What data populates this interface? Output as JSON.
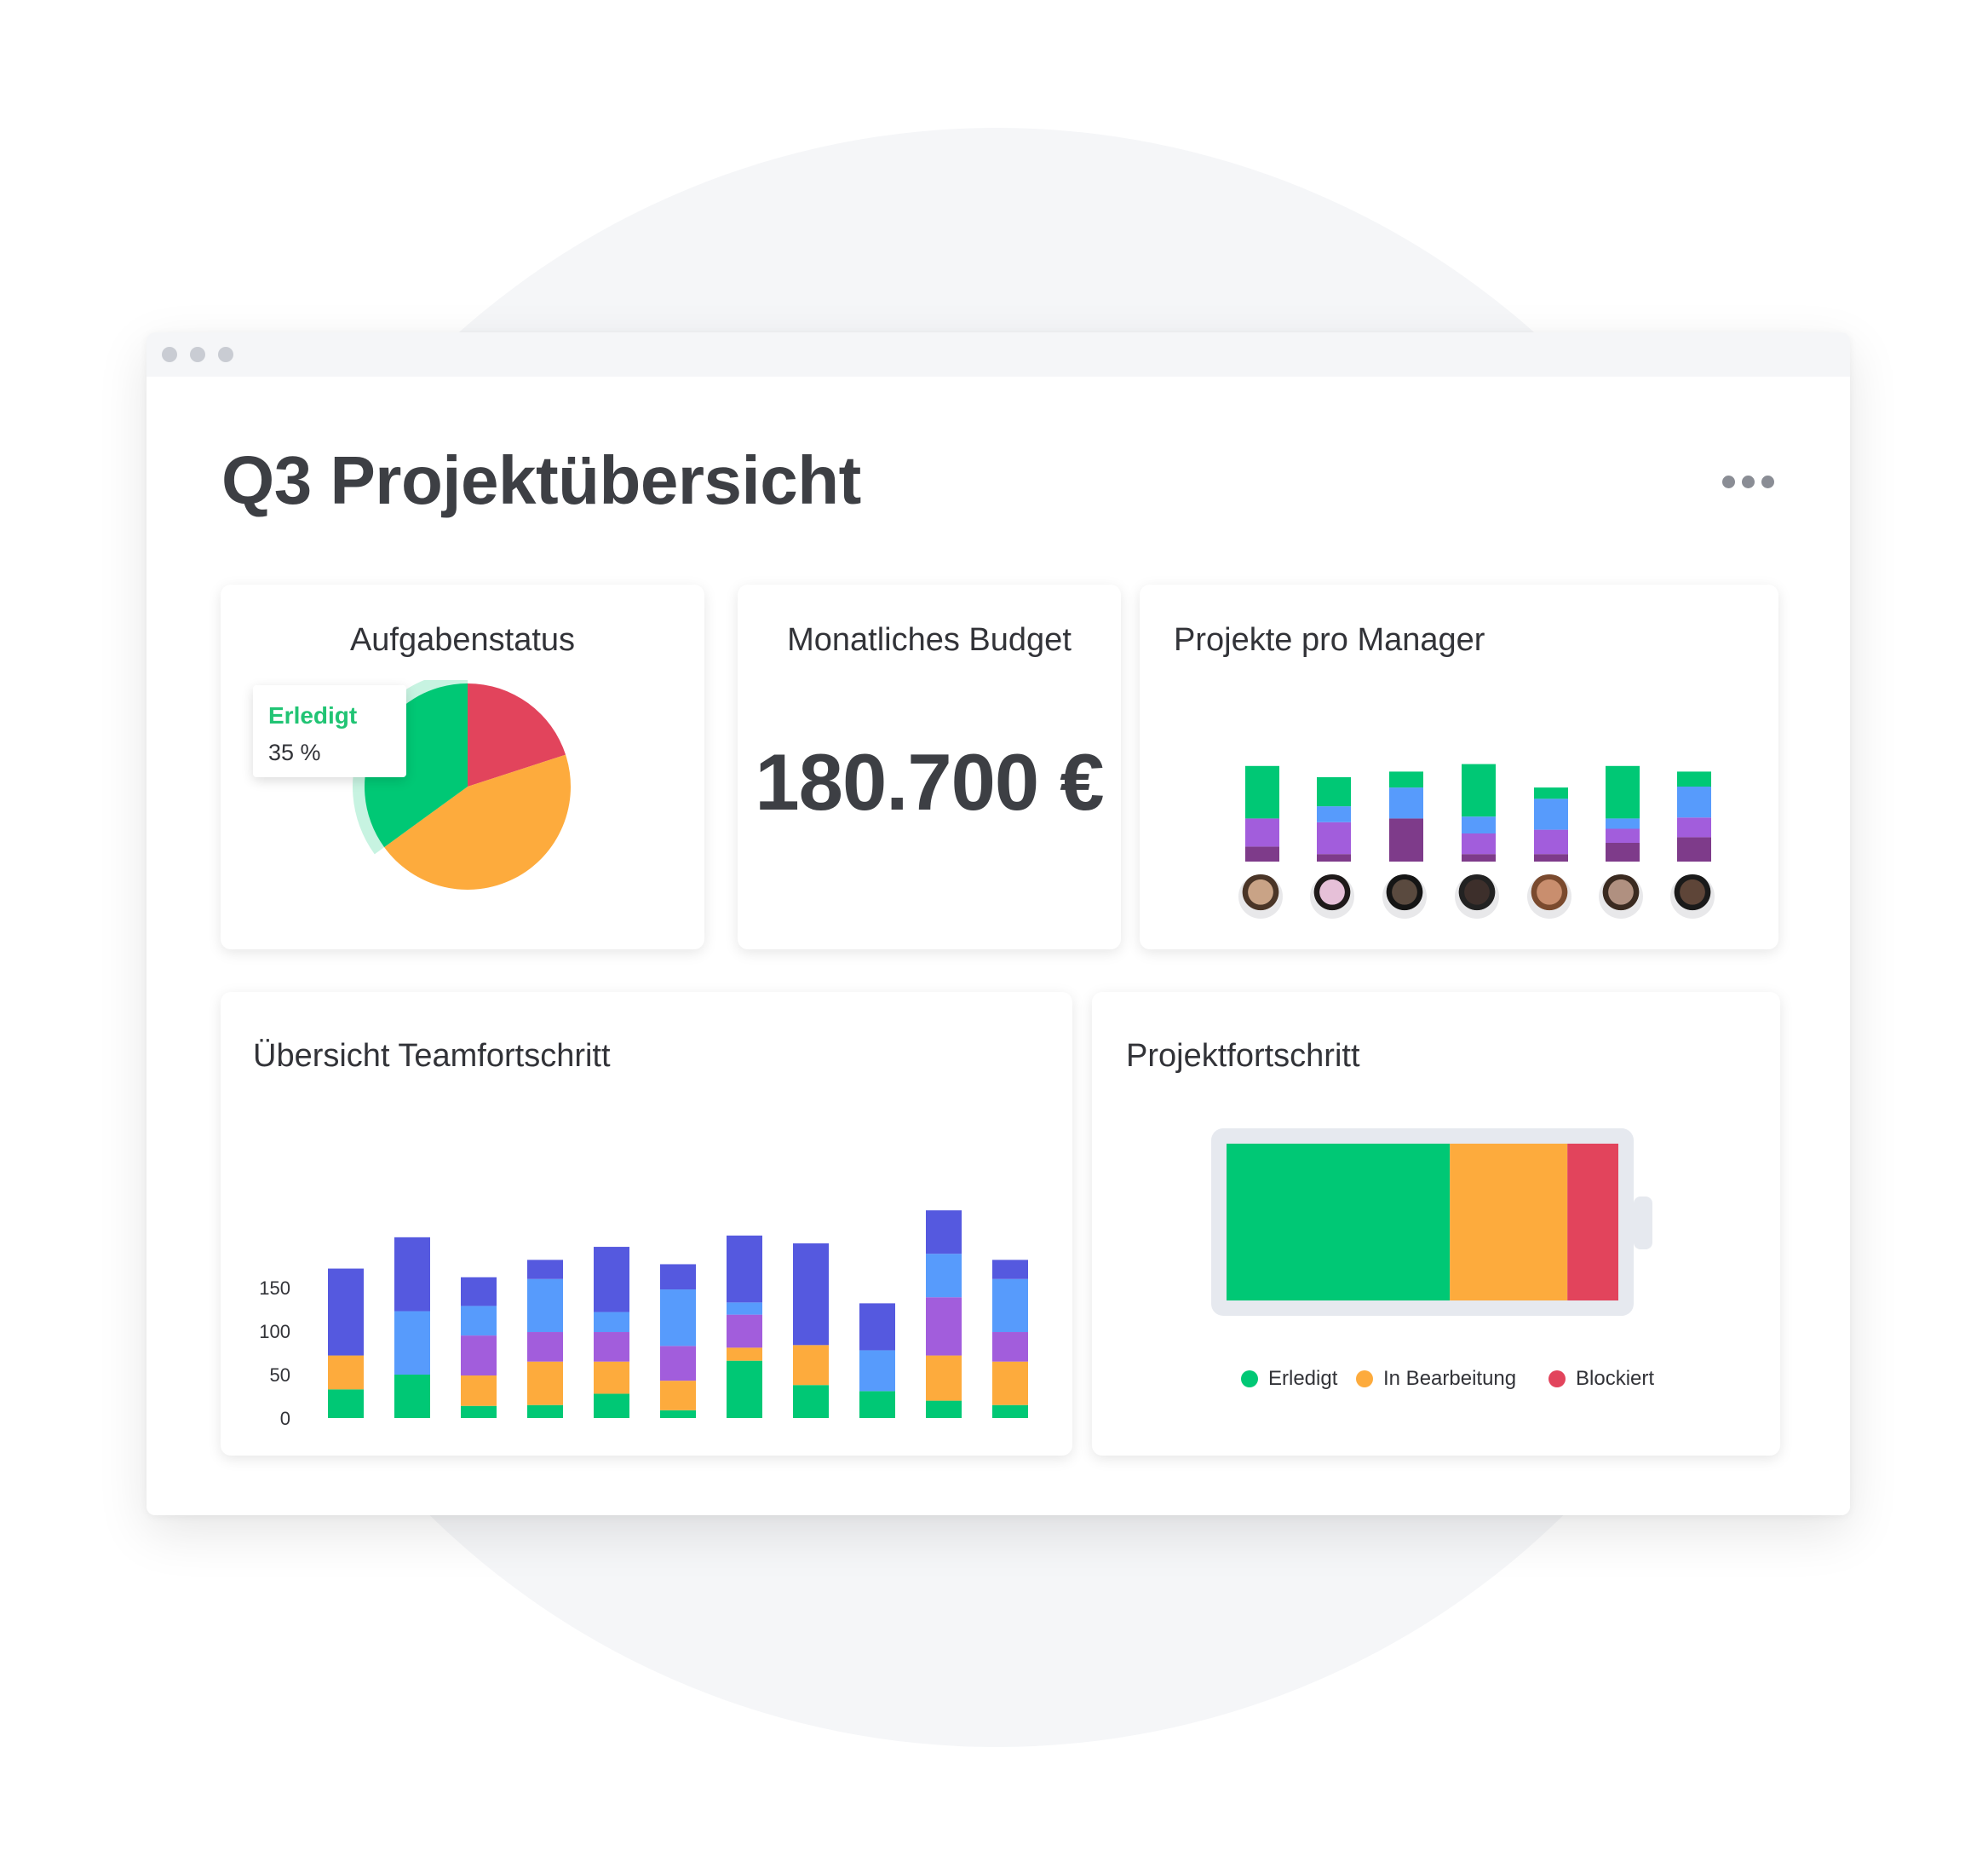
{
  "dashboard": {
    "title": "Q3 Projektübersicht"
  },
  "colors": {
    "green": "#00c875",
    "orange": "#fdab3d",
    "red": "#e2445c",
    "dark_purple": "#7e3b8a",
    "purple": "#a25ddc",
    "blue": "#579bfc",
    "indigo": "#5559df"
  },
  "task_status": {
    "title": "Aufgabenstatus",
    "tooltip": {
      "label": "Erledigt",
      "value": "35 %"
    }
  },
  "budget": {
    "title": "Monatliches Budget",
    "value": "180.700 €"
  },
  "manager_projects": {
    "title": "Projekte pro Manager",
    "avatars": [
      "avatar-1",
      "avatar-2",
      "avatar-3",
      "avatar-4",
      "avatar-5",
      "avatar-6",
      "avatar-7"
    ]
  },
  "team_progress": {
    "title": "Übersicht Teamfortschritt"
  },
  "project_progress": {
    "title": "Projektfortschritt",
    "legend": [
      {
        "label": "Erledigt",
        "color": "#00c875"
      },
      {
        "label": "In Bearbeitung",
        "color": "#fdab3d"
      },
      {
        "label": "Blockiert",
        "color": "#e2445c"
      }
    ]
  },
  "chart_data": [
    {
      "type": "pie",
      "title": "Aufgabenstatus",
      "slices": [
        {
          "name": "Erledigt",
          "value": 35,
          "color": "#00c875"
        },
        {
          "name": "",
          "value": 45,
          "color": "#fdab3d"
        },
        {
          "name": "",
          "value": 20,
          "color": "#e2445c"
        }
      ],
      "highlighted": "Erledigt"
    },
    {
      "type": "bar",
      "stacked": true,
      "title": "Projekte pro Manager",
      "axis": false,
      "categories": [
        "avatar-1",
        "avatar-2",
        "avatar-3",
        "avatar-4",
        "avatar-5",
        "avatar-6",
        "avatar-7"
      ],
      "series": [
        {
          "color": "#7e3b8a",
          "values": [
            16,
            8,
            46,
            8,
            8,
            20,
            26
          ]
        },
        {
          "color": "#a25ddc",
          "values": [
            30,
            34,
            0,
            22,
            26,
            15,
            21
          ]
        },
        {
          "color": "#579bfc",
          "values": [
            0,
            17,
            33,
            18,
            33,
            11,
            33
          ]
        },
        {
          "color": "#00c875",
          "values": [
            56,
            31,
            17,
            56,
            12,
            56,
            16
          ]
        }
      ]
    },
    {
      "type": "bar",
      "stacked": true,
      "title": "Übersicht Teamfortschritt",
      "y_ticks": [
        0,
        50,
        100,
        150
      ],
      "ylim": [
        0,
        220
      ],
      "categories": [
        "",
        "",
        "",
        "",
        "",
        "",
        "",
        "",
        "",
        "",
        ""
      ],
      "series": [
        {
          "color": "#00c875",
          "values": [
            33,
            50,
            14,
            15,
            28,
            9,
            66,
            38,
            31,
            20,
            15
          ]
        },
        {
          "color": "#fdab3d",
          "values": [
            39,
            0,
            35,
            50,
            37,
            34,
            15,
            46,
            0,
            52,
            50
          ]
        },
        {
          "color": "#a25ddc",
          "values": [
            0,
            0,
            46,
            34,
            34,
            40,
            38,
            0,
            0,
            67,
            34
          ]
        },
        {
          "color": "#579bfc",
          "values": [
            0,
            73,
            34,
            61,
            23,
            65,
            14,
            0,
            47,
            50,
            61
          ]
        },
        {
          "color": "#5559df",
          "values": [
            100,
            85,
            33,
            22,
            75,
            29,
            77,
            117,
            54,
            50,
            22
          ]
        }
      ]
    },
    {
      "type": "bar",
      "stacked": true,
      "horizontal": true,
      "title": "Projektfortschritt",
      "series": [
        {
          "name": "Erledigt",
          "value": 57,
          "color": "#00c875"
        },
        {
          "name": "In Bearbeitung",
          "value": 30,
          "color": "#fdab3d"
        },
        {
          "name": "Blockiert",
          "value": 13,
          "color": "#e2445c"
        }
      ]
    }
  ]
}
